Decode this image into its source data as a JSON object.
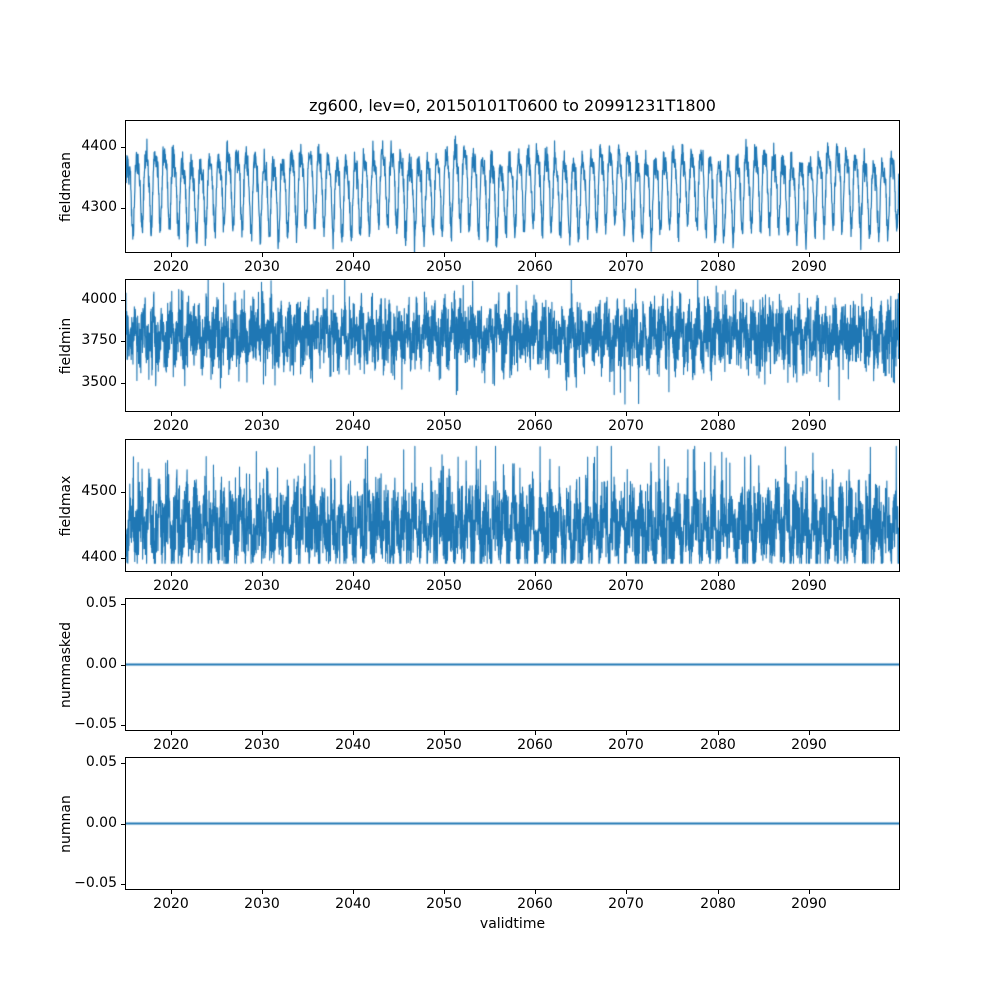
{
  "chart_data": {
    "type": "line",
    "title": "zg600, lev=0, 20150101T0600 to 20991231T1800",
    "xlabel": "validtime",
    "xlim": [
      2015.0,
      2100.0
    ],
    "xticks": [
      {
        "v": 2020,
        "label": "2020"
      },
      {
        "v": 2030,
        "label": "2030"
      },
      {
        "v": 2040,
        "label": "2040"
      },
      {
        "v": 2050,
        "label": "2050"
      },
      {
        "v": 2060,
        "label": "2060"
      },
      {
        "v": 2070,
        "label": "2070"
      },
      {
        "v": 2080,
        "label": "2080"
      },
      {
        "v": 2090,
        "label": "2090"
      }
    ],
    "line_color": "#1f77b4",
    "grid": false,
    "legend": "none",
    "subplots": [
      {
        "ylabel": "fieldmean",
        "ylim": [
          4225,
          4445
        ],
        "yticks": [
          {
            "v": 4300,
            "label": "4300"
          },
          {
            "v": 4400,
            "label": "4400"
          }
        ],
        "series": {
          "kind": "seasonal_noise",
          "baseline": 4333,
          "components": [
            {
              "amp": 58,
              "period_years": 1,
              "phase": 0.0
            },
            {
              "amp": 16,
              "period_years": 0.5,
              "phase": 1.1
            },
            {
              "amp": 10,
              "period_years": 8.3,
              "phase": 0.4
            }
          ],
          "noise_sd": 11,
          "points_per_year": 40,
          "seed": 101,
          "approx_value_range": [
            4230,
            4435
          ],
          "line_width": 1.2
        }
      },
      {
        "ylabel": "fieldmin",
        "ylim": [
          3325,
          4125
        ],
        "yticks": [
          {
            "v": 3500,
            "label": "3500"
          },
          {
            "v": 3750,
            "label": "3750"
          },
          {
            "v": 4000,
            "label": "4000"
          }
        ],
        "series": {
          "kind": "seasonal_noise",
          "baseline": 3790,
          "components": [
            {
              "amp": 65,
              "period_years": 1,
              "phase": 2.0
            },
            {
              "amp": 25,
              "period_years": 0.5,
              "phase": 0.7
            }
          ],
          "noise_sd": 92,
          "spikes": {
            "prob": 0.012,
            "min": 80,
            "max": 260,
            "sign": -1
          },
          "clamp": [
            3310,
            4150
          ],
          "points_per_year": 60,
          "seed": 202,
          "approx_value_range": [
            3330,
            4150
          ],
          "line_width": 1.1
        }
      },
      {
        "ylabel": "fieldmax",
        "ylim": [
          4378,
          4582
        ],
        "yticks": [
          {
            "v": 4400,
            "label": "4400"
          },
          {
            "v": 4500,
            "label": "4500"
          }
        ],
        "series": {
          "kind": "seasonal_noise",
          "baseline": 4447,
          "components": [
            {
              "amp": 26,
              "period_years": 1,
              "phase": 4.0
            },
            {
              "amp": 12,
              "period_years": 0.37,
              "phase": 1.9
            }
          ],
          "noise_sd": 28,
          "spikes": {
            "prob": 0.02,
            "min": 30,
            "max": 110,
            "sign": 1
          },
          "clamp": [
            4390,
            4572
          ],
          "points_per_year": 60,
          "seed": 303,
          "approx_value_range": [
            4390,
            4570
          ],
          "line_width": 1.1
        }
      },
      {
        "ylabel": "nummasked",
        "ylim": [
          -0.055,
          0.055
        ],
        "yticks": [
          {
            "v": -0.05,
            "label": "−0.05"
          },
          {
            "v": 0.0,
            "label": "0.00"
          },
          {
            "v": 0.05,
            "label": "0.05"
          }
        ],
        "series": {
          "kind": "constant",
          "value": 0.0,
          "line_width": 2
        }
      },
      {
        "ylabel": "numnan",
        "ylim": [
          -0.055,
          0.055
        ],
        "yticks": [
          {
            "v": -0.05,
            "label": "−0.05"
          },
          {
            "v": 0.0,
            "label": "0.00"
          },
          {
            "v": 0.05,
            "label": "0.05"
          }
        ],
        "series": {
          "kind": "constant",
          "value": 0.0,
          "line_width": 2
        }
      }
    ]
  }
}
